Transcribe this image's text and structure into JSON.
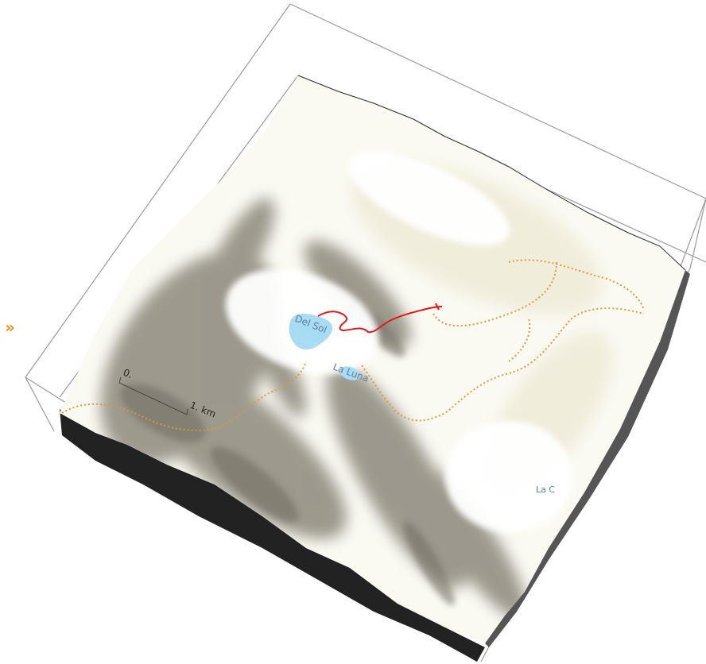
{
  "toolbar": {
    "expand_glyph": "»",
    "expand_icon": "double-chevron-right-icon"
  },
  "map": {
    "lake_labels": [
      "Del Sol",
      "La Luna",
      "La C"
    ],
    "scale_bar": {
      "start_label": "0.",
      "end_label": "1. km"
    },
    "colors": {
      "terrain_base": "#f6f3e4",
      "terrain_shadow": "#7a766a",
      "water": "#a8dcf5",
      "water_label": "#5a7f9e",
      "trail_dotted": "#d79a3c",
      "track": "#e01919",
      "side_wall": "#222222",
      "accent": "#e8901c"
    }
  }
}
